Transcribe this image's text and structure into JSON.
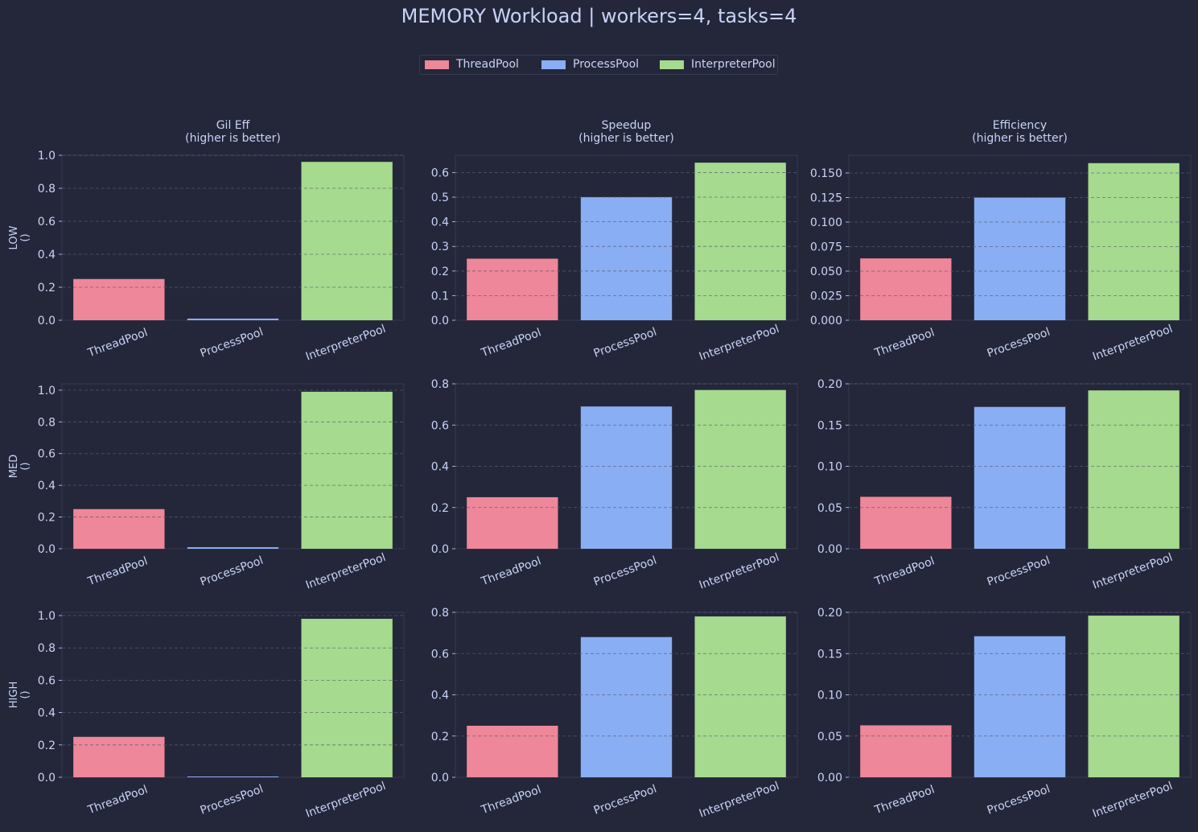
{
  "title": "MEMORY Workload | workers=4, tasks=4",
  "legend": [
    {
      "name": "ThreadPool",
      "color": "#ee8799"
    },
    {
      "name": "ProcessPool",
      "color": "#8aaef3"
    },
    {
      "name": "InterpreterPool",
      "color": "#a6da8f"
    }
  ],
  "colors": {
    "background": "#24273a",
    "axes_frame": "#363a4f",
    "grid": "#6e738d",
    "text": "#cad3f5"
  },
  "chart_data": [
    {
      "type": "bar",
      "row_label": "LOW\n()",
      "title": "Gil Eff\n(higher is better)",
      "categories": [
        "ThreadPool",
        "ProcessPool",
        "InterpreterPool"
      ],
      "values": [
        0.25,
        0.01,
        0.96
      ],
      "ylim": [
        0,
        1.0
      ],
      "yticks": [
        "0.0",
        "0.2",
        "0.4",
        "0.6",
        "0.8",
        "1.0"
      ],
      "grid": true
    },
    {
      "type": "bar",
      "title": "Speedup\n(higher is better)",
      "categories": [
        "ThreadPool",
        "ProcessPool",
        "InterpreterPool"
      ],
      "values": [
        0.25,
        0.5,
        0.64
      ],
      "ylim": [
        0,
        0.67
      ],
      "yticks": [
        "0.0",
        "0.1",
        "0.2",
        "0.3",
        "0.4",
        "0.5",
        "0.6"
      ],
      "grid": true
    },
    {
      "type": "bar",
      "title": "Efficiency\n(higher is better)",
      "categories": [
        "ThreadPool",
        "ProcessPool",
        "InterpreterPool"
      ],
      "values": [
        0.063,
        0.125,
        0.16
      ],
      "ylim": [
        0,
        0.168
      ],
      "yticks": [
        "0.000",
        "0.025",
        "0.050",
        "0.075",
        "0.100",
        "0.125",
        "0.150"
      ],
      "grid": true
    },
    {
      "type": "bar",
      "row_label": "MED\n()",
      "categories": [
        "ThreadPool",
        "ProcessPool",
        "InterpreterPool"
      ],
      "values": [
        0.25,
        0.01,
        0.99
      ],
      "ylim": [
        0,
        1.04
      ],
      "yticks": [
        "0.0",
        "0.2",
        "0.4",
        "0.6",
        "0.8",
        "1.0"
      ],
      "grid": true
    },
    {
      "type": "bar",
      "categories": [
        "ThreadPool",
        "ProcessPool",
        "InterpreterPool"
      ],
      "values": [
        0.25,
        0.69,
        0.77
      ],
      "ylim": [
        0,
        0.8
      ],
      "yticks": [
        "0.0",
        "0.2",
        "0.4",
        "0.6",
        "0.8"
      ],
      "grid": true
    },
    {
      "type": "bar",
      "categories": [
        "ThreadPool",
        "ProcessPool",
        "InterpreterPool"
      ],
      "values": [
        0.063,
        0.172,
        0.192
      ],
      "ylim": [
        0,
        0.2
      ],
      "yticks": [
        "0.00",
        "0.05",
        "0.10",
        "0.15",
        "0.20"
      ],
      "grid": true
    },
    {
      "type": "bar",
      "row_label": "HIGH\n()",
      "categories": [
        "ThreadPool",
        "ProcessPool",
        "InterpreterPool"
      ],
      "values": [
        0.25,
        0.005,
        0.98
      ],
      "ylim": [
        0,
        1.02
      ],
      "yticks": [
        "0.0",
        "0.2",
        "0.4",
        "0.6",
        "0.8",
        "1.0"
      ],
      "grid": true
    },
    {
      "type": "bar",
      "categories": [
        "ThreadPool",
        "ProcessPool",
        "InterpreterPool"
      ],
      "values": [
        0.25,
        0.68,
        0.78
      ],
      "ylim": [
        0,
        0.8
      ],
      "yticks": [
        "0.0",
        "0.2",
        "0.4",
        "0.6",
        "0.8"
      ],
      "grid": true
    },
    {
      "type": "bar",
      "categories": [
        "ThreadPool",
        "ProcessPool",
        "InterpreterPool"
      ],
      "values": [
        0.063,
        0.171,
        0.196
      ],
      "ylim": [
        0,
        0.2
      ],
      "yticks": [
        "0.00",
        "0.05",
        "0.10",
        "0.15",
        "0.20"
      ],
      "grid": true
    }
  ]
}
